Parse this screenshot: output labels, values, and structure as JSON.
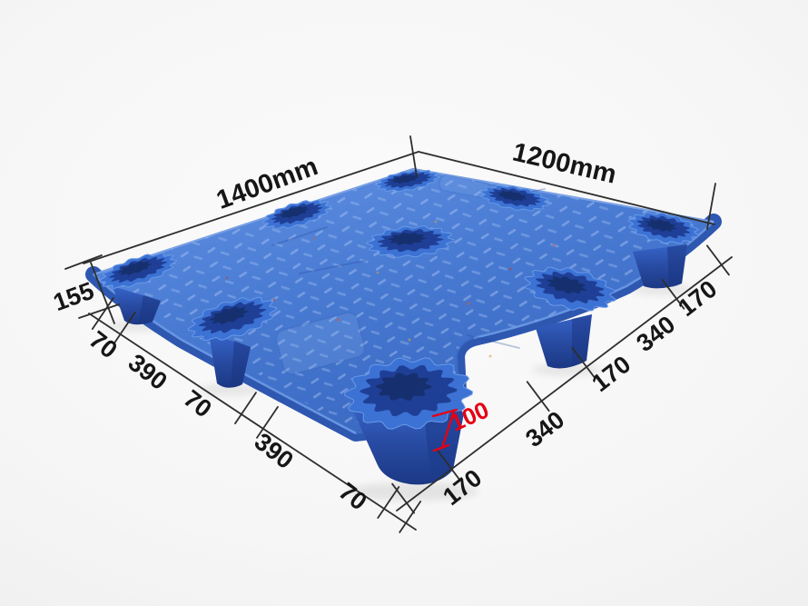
{
  "annotations": {
    "top_left_dimension": "1400mm",
    "top_right_dimension": "1200mm",
    "height_dimension": "155",
    "left_edge_chain": [
      "70",
      "390",
      "70",
      "390",
      "70"
    ],
    "right_edge_chain": [
      "170",
      "340",
      "170",
      "340",
      "170"
    ],
    "foot_dimension": "100"
  },
  "colors": {
    "pallet_blue": "#4a7ad2",
    "recess_dark_blue": "#1f3f96",
    "dimension_line": "#2e2e2e",
    "label_color": "#161616",
    "accent_red": "#e60012",
    "background_gray": "#efefef"
  }
}
